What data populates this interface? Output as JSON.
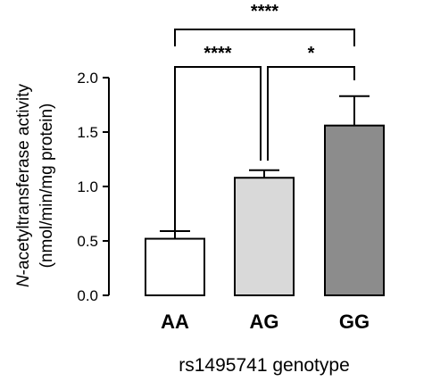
{
  "chart_data": {
    "type": "bar",
    "categories": [
      "AA",
      "AG",
      "GG"
    ],
    "values": [
      0.52,
      1.08,
      1.56
    ],
    "errors": [
      0.07,
      0.07,
      0.27
    ],
    "colors": [
      "#ffffff",
      "#d9d9d9",
      "#8c8c8c"
    ],
    "ylabel_prefix": "N",
    "ylabel_line1": "-acetyltransferase activity",
    "ylabel_line2": "(nmol/min/mg protein)",
    "xlabel": "rs1495741 genotype",
    "ylim": [
      0,
      2.0
    ],
    "yticks": [
      "0.0",
      "0.5",
      "1.0",
      "1.5",
      "2.0"
    ],
    "significance": [
      {
        "from": 0,
        "to": 2,
        "label": "****"
      },
      {
        "from": 0,
        "to": 1,
        "label": "****"
      },
      {
        "from": 1,
        "to": 2,
        "label": "*"
      }
    ]
  }
}
